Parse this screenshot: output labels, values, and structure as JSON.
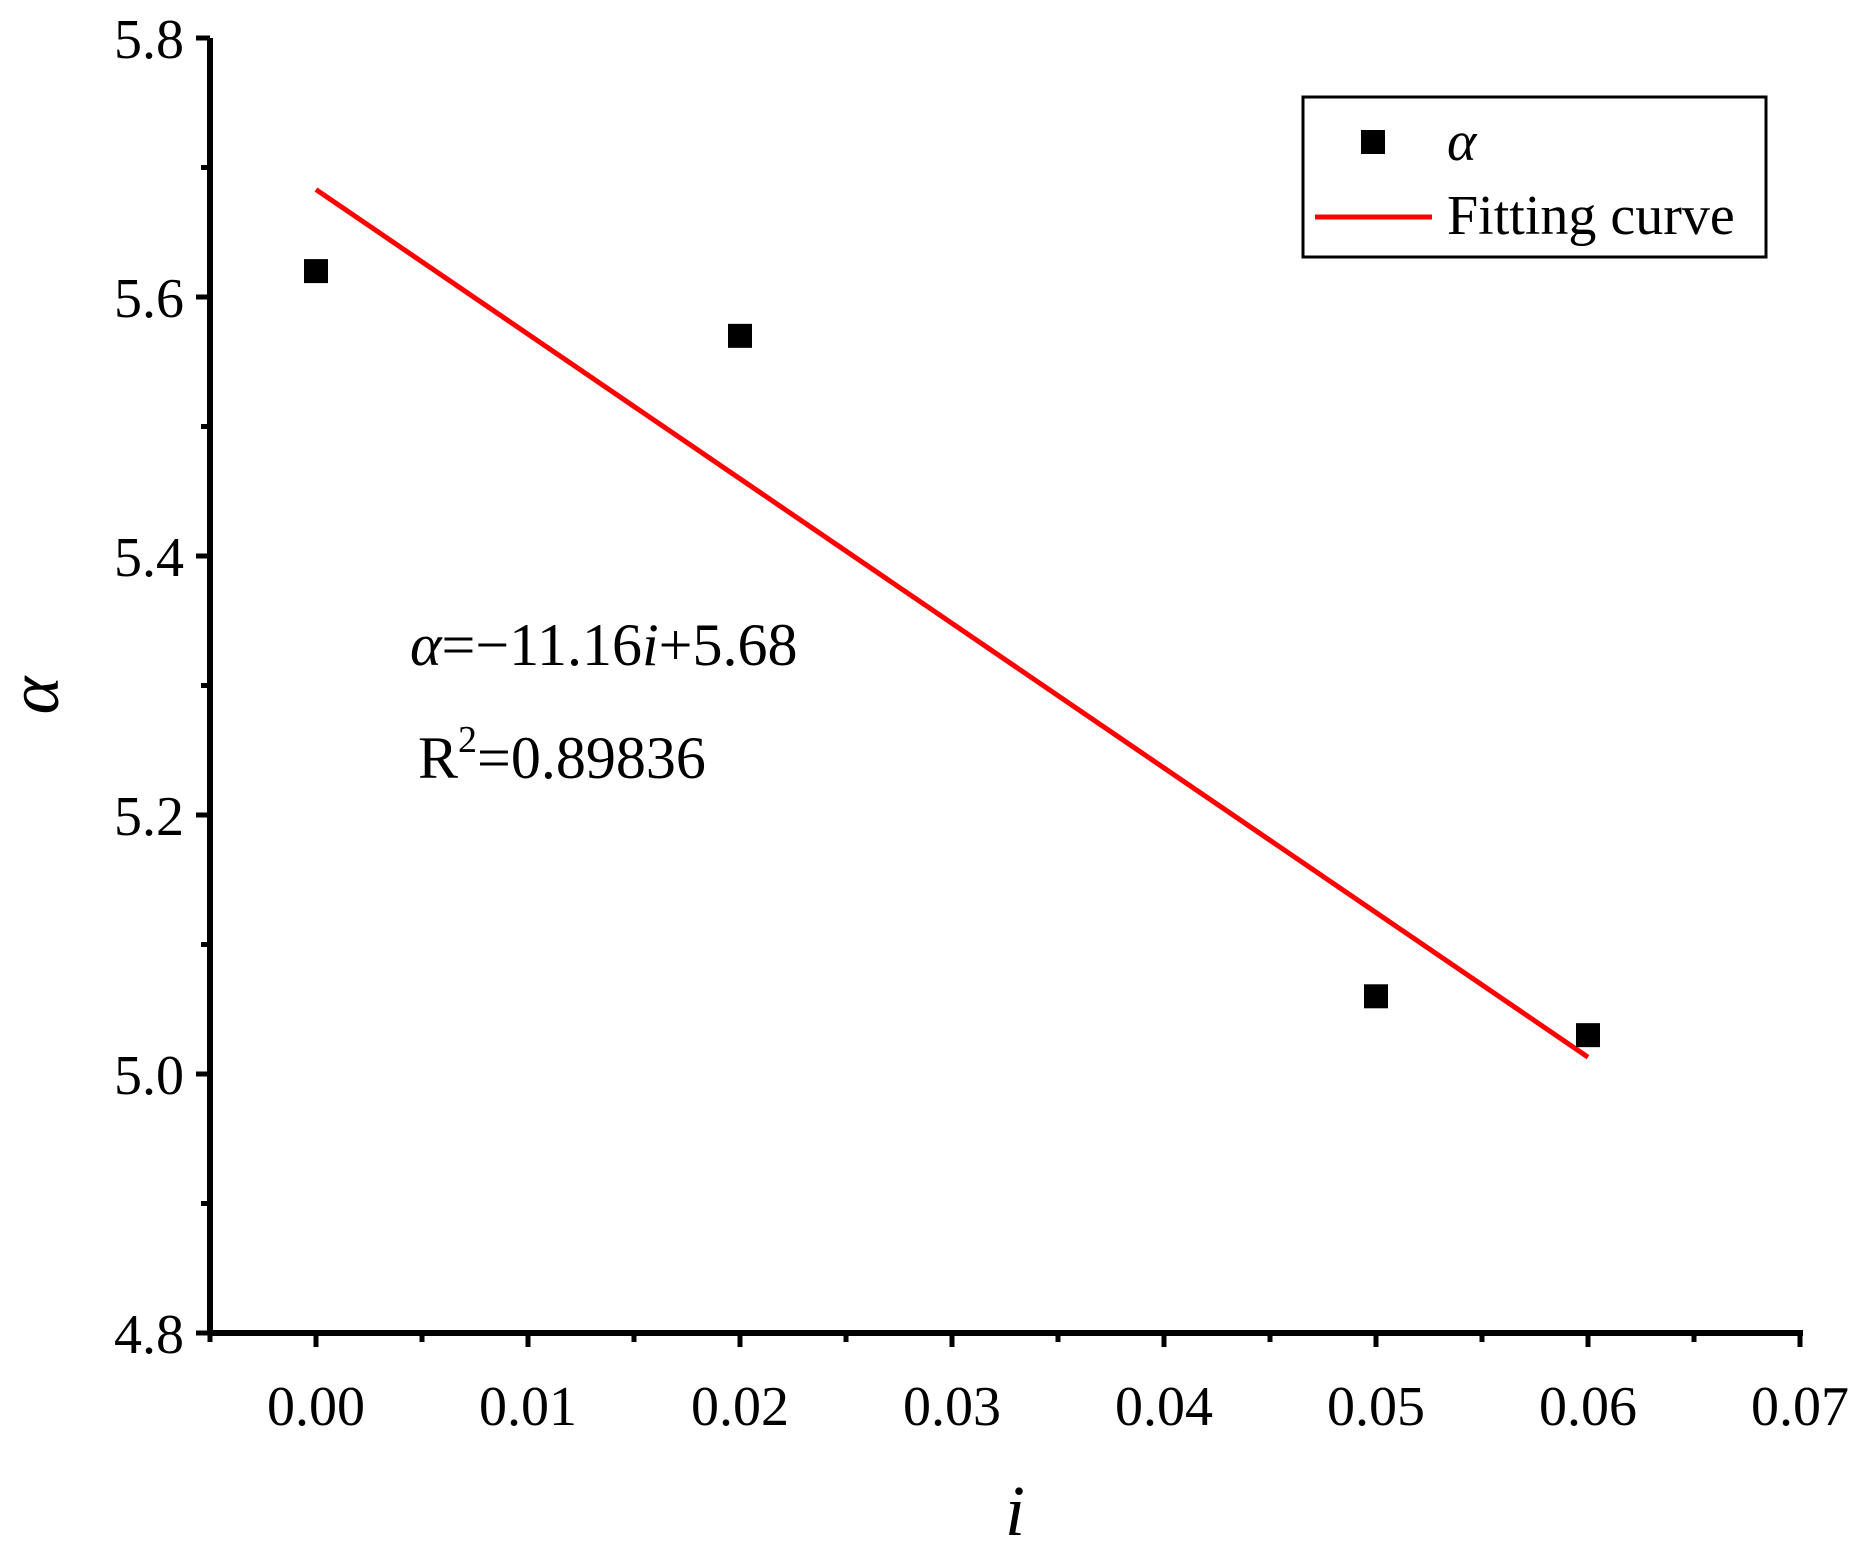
{
  "chart_data": {
    "type": "scatter",
    "title": "",
    "xlabel": "i",
    "ylabel": "α",
    "xlim": [
      -0.005,
      0.07
    ],
    "ylim": [
      4.8,
      5.8
    ],
    "x_ticks": [
      "0.00",
      "0.01",
      "0.02",
      "0.03",
      "0.04",
      "0.05",
      "0.06",
      "0.07"
    ],
    "y_ticks": [
      "4.8",
      "5.0",
      "5.2",
      "5.4",
      "5.6",
      "5.8"
    ],
    "grid": false,
    "legend_position": "top-right",
    "series": [
      {
        "name": "α",
        "kind": "scatter",
        "marker": "square",
        "color": "#000000",
        "x": [
          0.0,
          0.02,
          0.05,
          0.06
        ],
        "y": [
          5.62,
          5.57,
          5.06,
          5.03
        ]
      },
      {
        "name": "Fitting curve",
        "kind": "line",
        "color": "#ff0000",
        "slope": -11.16,
        "intercept": 5.68,
        "x": [
          0.0,
          0.06
        ],
        "y": [
          5.683,
          5.013
        ]
      }
    ],
    "annotations": {
      "equation_var": "α",
      "equation_mid": "=−11.16",
      "equation_var2": "i",
      "equation_end": "+5.68",
      "r2_base": "R",
      "r2_sup": "2",
      "r2_value": "=0.89836"
    }
  }
}
